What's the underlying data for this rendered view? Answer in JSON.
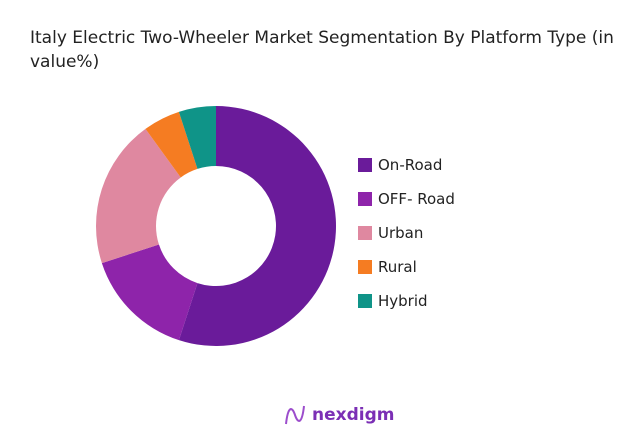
{
  "chart_data": {
    "type": "pie",
    "donut": true,
    "title": "Italy Electric Two-Wheeler Market Segmentation By Platform Type (in value%)",
    "categories": [
      "On-Road",
      "OFF- Road",
      "Urban",
      "Rural",
      "Hybrid"
    ],
    "values": [
      55,
      15,
      20,
      5,
      5
    ],
    "colors": [
      "#6a1b9a",
      "#8e24aa",
      "#df88a0",
      "#f57c22",
      "#0f9488"
    ],
    "legend": "right"
  },
  "brand": {
    "name": "nexdigm",
    "color": "#7b2fb5"
  }
}
